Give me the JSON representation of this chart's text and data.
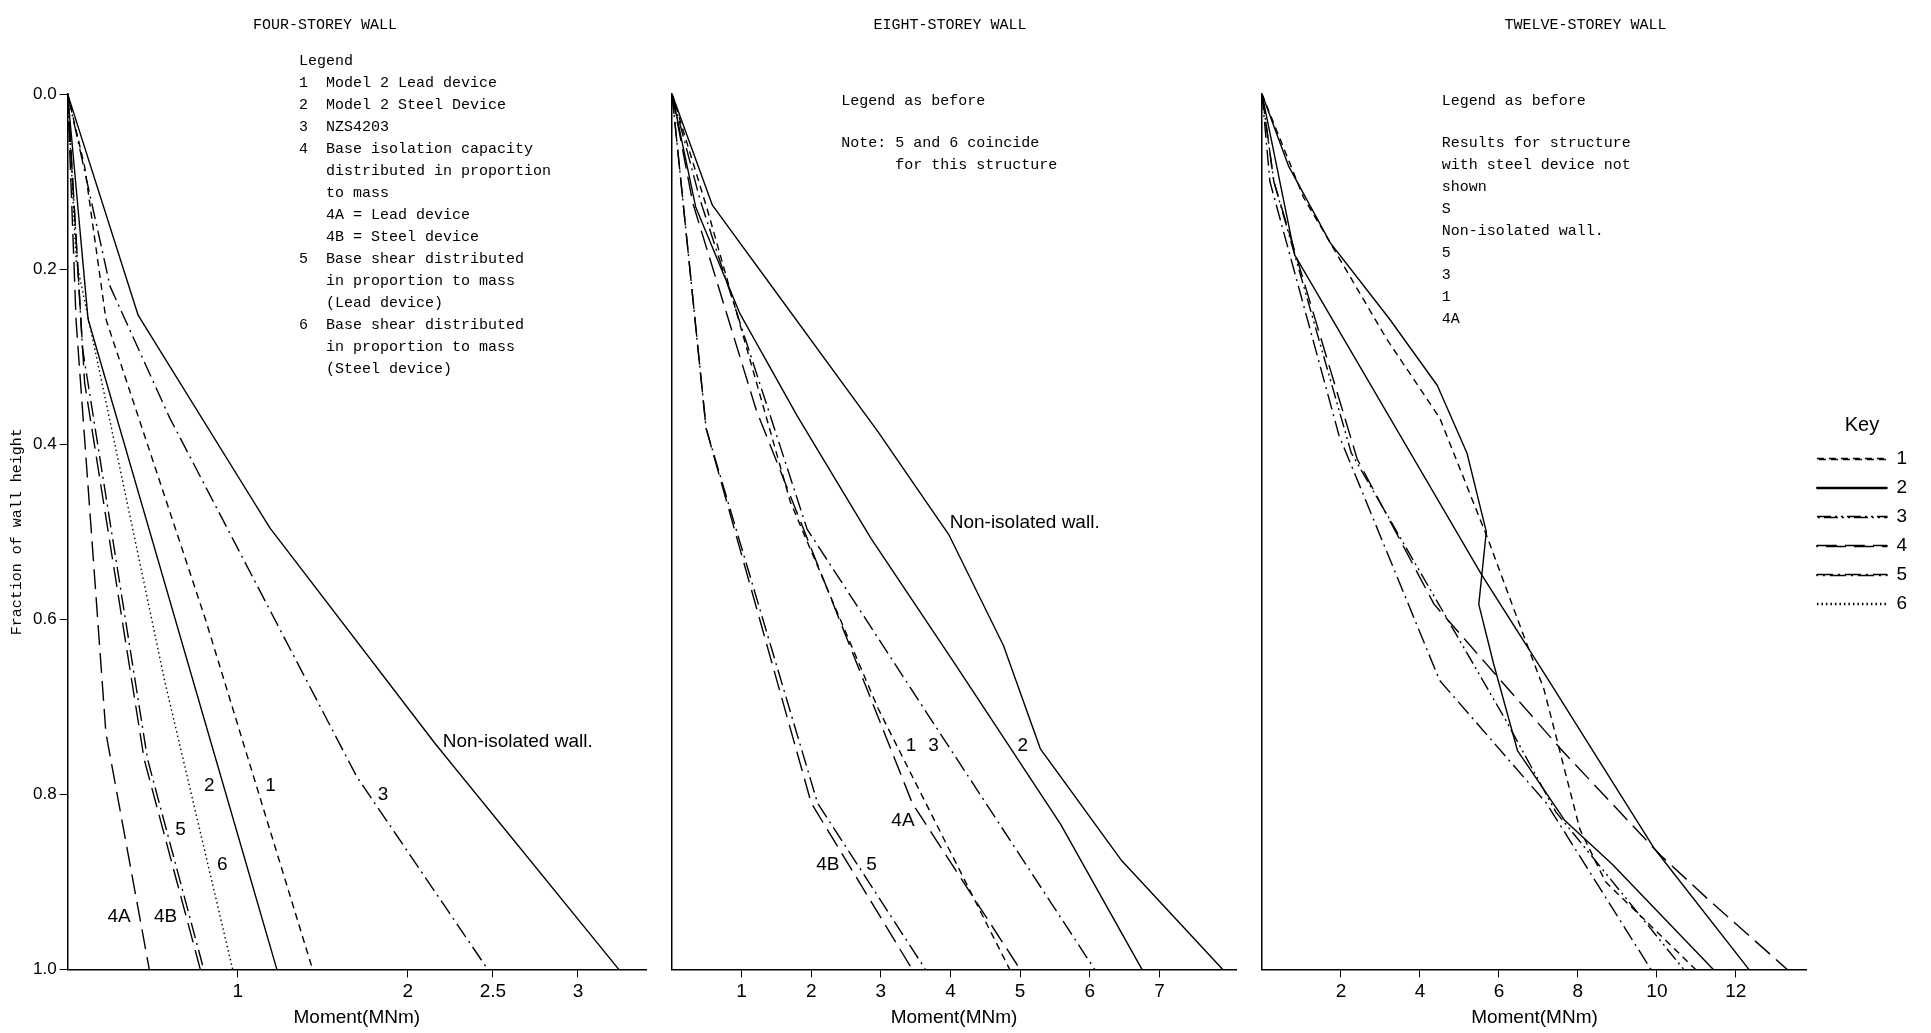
{
  "chart_data": [
    {
      "type": "line",
      "title": "FOUR-STOREY WALL",
      "xlabel": "Moment(MNm)",
      "ylabel": "Fraction of wall height",
      "xlim": [
        0,
        3.4
      ],
      "xticks": [
        1,
        2,
        2.5,
        3
      ],
      "ylim": [
        1,
        0
      ],
      "yticks": [
        {
          "value": 0,
          "label": "0.0"
        },
        0.2,
        0.4,
        0.6,
        0.8,
        {
          "value": 1,
          "label": "1.0"
        }
      ],
      "grid": false,
      "legend": false,
      "marker": "none",
      "series": [
        {
          "name": "Non-isolated wall.",
          "color": "#000000",
          "line_style": "solid",
          "x": [
            0,
            0.415,
            1.19,
            2.16,
            3.24
          ],
          "values": [
            0,
            0.253,
            0.496,
            0.742,
            1
          ]
        },
        {
          "name": "3",
          "color": "#000000",
          "line_style": "dashdot",
          "x": [
            0,
            0.25,
            0.6,
            1.7,
            2.47
          ],
          "values": [
            0,
            0.22,
            0.37,
            0.78,
            1
          ]
        },
        {
          "name": "1",
          "color": "#000000",
          "line_style": "dashed",
          "x": [
            0,
            0.1,
            0.225,
            0.81,
            1.44
          ],
          "values": [
            0,
            0.083,
            0.257,
            0.6,
            1
          ]
        },
        {
          "name": "2",
          "color": "#000000",
          "line_style": "solid",
          "x": [
            0,
            0.12,
            1.23
          ],
          "values": [
            0,
            0.257,
            1
          ]
        },
        {
          "name": "6",
          "color": "#000000",
          "line_style": "dotted",
          "x": [
            0,
            0.05,
            0.57,
            0.97
          ],
          "values": [
            0,
            0.19,
            0.67,
            1
          ]
        },
        {
          "name": "5",
          "color": "#000000",
          "line_style": "dashdot",
          "x": [
            0,
            0.087,
            0.47,
            0.8
          ],
          "values": [
            0,
            0.29,
            0.76,
            1
          ]
        },
        {
          "name": "4B",
          "color": "#000000",
          "line_style": "longdash",
          "x": [
            0,
            0.1,
            0.45,
            0.78
          ],
          "values": [
            0,
            0.33,
            0.76,
            1
          ]
        },
        {
          "name": "4A",
          "color": "#000000",
          "line_style": "longdash",
          "x": [
            0,
            0.05,
            0.225,
            0.48
          ],
          "values": [
            0,
            0.26,
            0.73,
            1
          ]
        }
      ],
      "annotations": [
        "Legend",
        "1  Model 2 Lead device",
        "2  Model 2 Steel Device",
        "3  NZS4203",
        "4  Base isolation capacity",
        "   distributed in proportion",
        "   to mass",
        "   4A = Lead device",
        "   4B = Steel device",
        "5  Base shear distributed",
        "   in proportion to mass",
        "   (Lead device)",
        "6  Base shear distributed",
        "   in proportion to mass",
        "   (Steel device)"
      ]
    },
    {
      "type": "line",
      "title": "EIGHT-STOREY WALL",
      "xlabel": "Moment(MNm)",
      "xlim": [
        0,
        8.1
      ],
      "xticks": [
        1,
        2,
        3,
        4,
        5,
        6,
        7
      ],
      "ylim": [
        1,
        0
      ],
      "tick_labels": "x",
      "grid": false,
      "legend": false,
      "marker": "none",
      "series": [
        {
          "name": "Non-isolated wall.",
          "color": "#000000",
          "line_style": "solid",
          "x": [
            0,
            0.58,
            2.96,
            3.98,
            4.76,
            5.29,
            6.46,
            7.91
          ],
          "values": [
            0,
            0.127,
            0.386,
            0.504,
            0.63,
            0.748,
            0.876,
            1
          ]
        },
        {
          "name": "2",
          "color": "#000000",
          "line_style": "solid",
          "x": [
            0,
            0.34,
            0.97,
            1.8,
            2.86,
            4.03,
            5.58,
            6.75
          ],
          "values": [
            0,
            0.129,
            0.25,
            0.368,
            0.508,
            0.647,
            0.834,
            1
          ]
        },
        {
          "name": "3",
          "color": "#000000",
          "line_style": "dashdot",
          "x": [
            0,
            0.4,
            1.94,
            3.79,
            6.07
          ],
          "values": [
            0,
            0.12,
            0.497,
            0.723,
            1
          ]
        },
        {
          "name": "1",
          "color": "#000000",
          "line_style": "dashed",
          "x": [
            0,
            0.5,
            1.7,
            2.96,
            4.85
          ],
          "values": [
            0,
            0.13,
            0.466,
            0.702,
            1
          ]
        },
        {
          "name": "4A",
          "color": "#000000",
          "line_style": "longdash",
          "x": [
            0,
            0.3,
            1.21,
            3.45,
            5.0
          ],
          "values": [
            0,
            0.125,
            0.361,
            0.81,
            1
          ]
        },
        {
          "name": "5",
          "color": "#000000",
          "line_style": "dashdot",
          "x": [
            0,
            0.49,
            2.09,
            3.64
          ],
          "values": [
            0,
            0.382,
            0.81,
            1
          ]
        },
        {
          "name": "4B",
          "color": "#000000",
          "line_style": "longdash",
          "x": [
            0,
            0.49,
            2.0,
            3.45
          ],
          "values": [
            0,
            0.382,
            0.81,
            1
          ]
        }
      ],
      "annotations": [
        "Legend as before",
        "Note: 5 and 6 coincide",
        "      for this structure"
      ]
    },
    {
      "type": "line",
      "title": "TWELVE-STOREY WALL",
      "xlabel": "Moment(MNm)",
      "xlim": [
        0,
        13.8
      ],
      "xticks": [
        2,
        4,
        6,
        8,
        10,
        12
      ],
      "ylim": [
        1,
        0
      ],
      "tick_labels": "x",
      "grid": false,
      "legend": "right",
      "legend_title": "Key",
      "marker": "none",
      "series": [
        {
          "color": "#000000",
          "line_style": "solid",
          "x": [
            0,
            0.68,
            1.73,
            3.23,
            4.44,
            5.19,
            5.68,
            5.49,
            5.86,
            6.47,
            7.67,
            8.87,
            11.43
          ],
          "values": [
            0,
            0.083,
            0.17,
            0.257,
            0.333,
            0.41,
            0.5,
            0.583,
            0.65,
            0.75,
            0.83,
            0.88,
            1
          ]
        },
        {
          "name": "1",
          "color": "#000000",
          "line_style": "dashed",
          "x": [
            0,
            1.05,
            3.16,
            4.5,
            5.71,
            6.62,
            7.14,
            8.05,
            8.7,
            10.98
          ],
          "values": [
            0,
            0.118,
            0.28,
            0.37,
            0.507,
            0.618,
            0.68,
            0.84,
            0.9,
            1
          ]
        },
        {
          "name": "2",
          "color": "#000000",
          "line_style": "solid",
          "x": [
            0,
            0.83,
            5.56,
            7.22,
            9.92,
            12.33
          ],
          "values": [
            0,
            0.184,
            0.549,
            0.667,
            0.861,
            1
          ]
        },
        {
          "name": "3",
          "color": "#000000",
          "line_style": "dashdotdot",
          "x": [
            0,
            0.3,
            2.26,
            6.17,
            7.44,
            10.68
          ],
          "values": [
            0,
            0.1,
            0.41,
            0.715,
            0.82,
            1
          ]
        },
        {
          "name": "4",
          "color": "#000000",
          "line_style": "longdash",
          "x": [
            0,
            0.3,
            2.41,
            4.36,
            7.6,
            10.1,
            11.3,
            13.3
          ],
          "values": [
            0,
            0.1,
            0.417,
            0.583,
            0.75,
            0.87,
            0.92,
            1
          ]
        },
        {
          "name": "5",
          "color": "#000000",
          "line_style": "dashdot",
          "x": [
            0,
            0.2,
            1.95,
            4.5,
            7.2,
            9.85
          ],
          "values": [
            0,
            0.1,
            0.39,
            0.67,
            0.81,
            1
          ]
        },
        {
          "name": "6",
          "color": "#000000",
          "line_style": "dotted"
        }
      ],
      "annotations": [
        "Legend as before",
        "Results for structure",
        "with steel device not",
        "shown",
        "S",
        "Non-isolated wall.",
        "5",
        "3",
        "1",
        "4A"
      ]
    }
  ]
}
